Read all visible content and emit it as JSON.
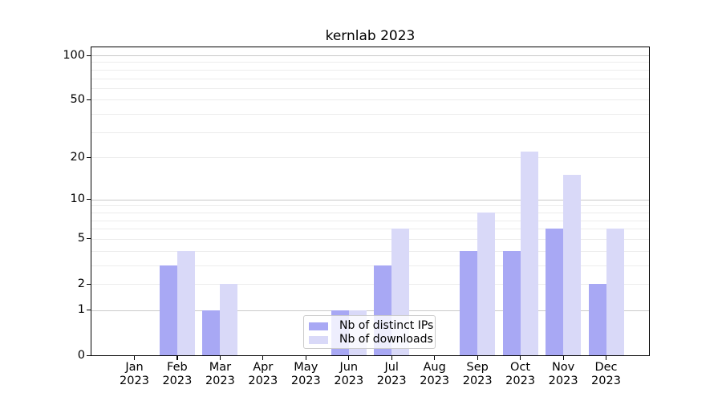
{
  "chart_data": {
    "type": "bar",
    "title": "kernlab 2023",
    "year": "2023",
    "months": [
      "Jan",
      "Feb",
      "Mar",
      "Apr",
      "May",
      "Jun",
      "Jul",
      "Aug",
      "Sep",
      "Oct",
      "Nov",
      "Dec"
    ],
    "series": [
      {
        "name": "Nb of distinct IPs",
        "color": "#a8a8f4",
        "values": [
          0,
          3,
          1,
          0,
          0,
          1,
          3,
          0,
          4,
          4,
          6,
          2
        ]
      },
      {
        "name": "Nb of downloads",
        "color": "#d9d9f8",
        "values": [
          0,
          4,
          2,
          0,
          0,
          1,
          6,
          0,
          8,
          22,
          15,
          6
        ]
      }
    ],
    "y_axis": {
      "scale": "log1p",
      "tick_labels": [
        0,
        1,
        2,
        5,
        10,
        20,
        50,
        100
      ],
      "major_gridlines": [
        1,
        10,
        100
      ],
      "minor_gridlines": [
        2,
        3,
        4,
        5,
        6,
        7,
        8,
        9,
        20,
        30,
        40,
        50,
        60,
        70,
        80,
        90
      ],
      "range": [
        0,
        100
      ]
    },
    "legend_position": "bottom-center",
    "grid": true,
    "colors": {
      "major_grid": "#c9c9c9",
      "minor_grid": "#ececec",
      "axis": "#000000",
      "background": "#ffffff"
    }
  }
}
